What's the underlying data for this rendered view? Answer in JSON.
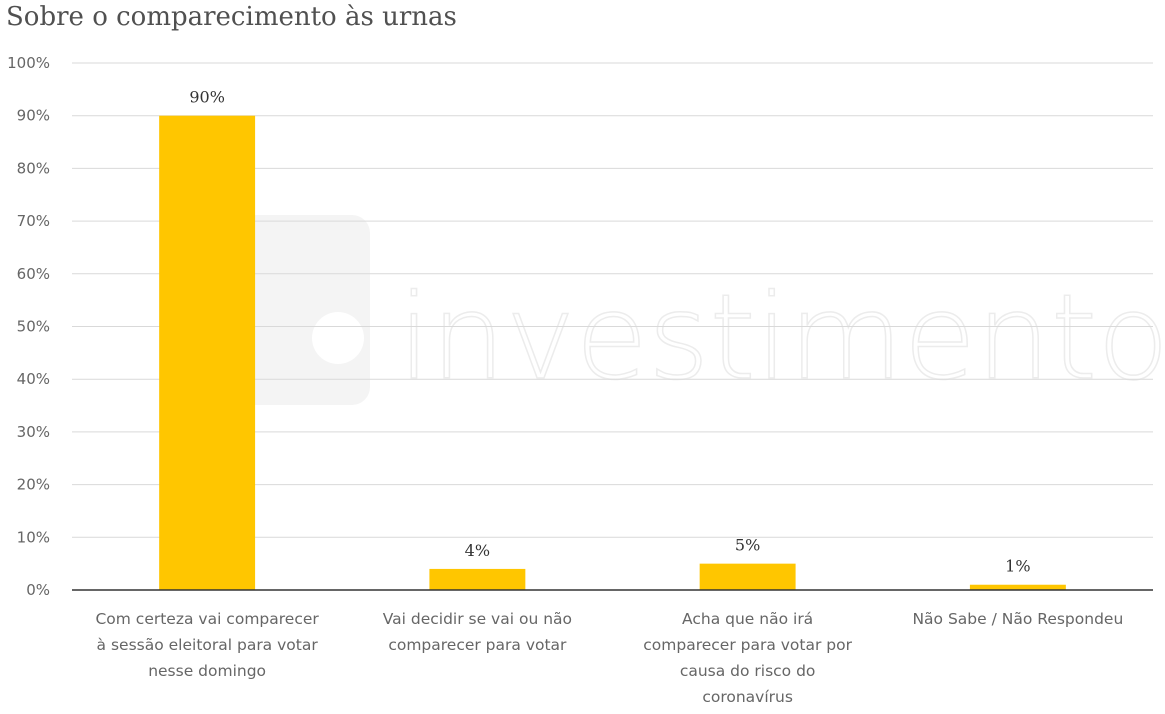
{
  "chart_data": {
    "type": "bar",
    "title": "Sobre o comparecimento às urnas",
    "categories": [
      [
        "Com certeza vai comparecer",
        "à sessão eleitoral para votar",
        "nesse domingo"
      ],
      [
        "Vai decidir se vai ou não",
        "comparecer para votar"
      ],
      [
        "Acha que não irá",
        "comparecer para votar por",
        "causa do risco do",
        "coronavírus"
      ],
      [
        "Não Sabe / Não Respondeu"
      ]
    ],
    "values": [
      90,
      4,
      5,
      1
    ],
    "data_labels": [
      "90%",
      "4%",
      "5%",
      "1%"
    ],
    "ylim": [
      0,
      100
    ],
    "yticks": [
      "0%",
      "10%",
      "20%",
      "30%",
      "40%",
      "50%",
      "60%",
      "70%",
      "80%",
      "90%",
      "100%"
    ],
    "grid": true,
    "bar_color": "#FFC600",
    "watermark": {
      "logo": "xp",
      "text": "investimentos"
    }
  }
}
